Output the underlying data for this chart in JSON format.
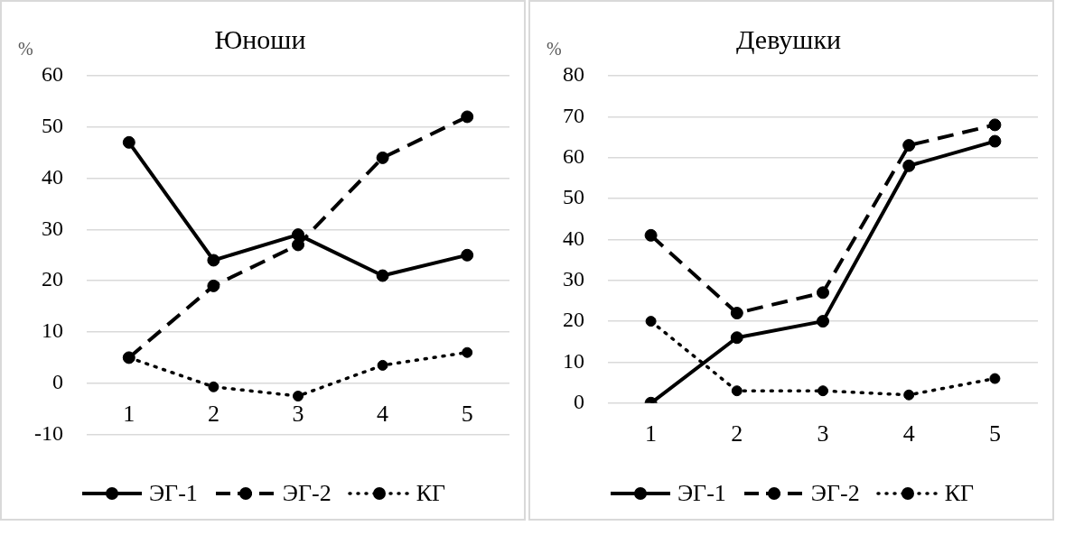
{
  "chart_data": [
    {
      "type": "line",
      "title": "Юноши",
      "ylabel": "%",
      "categories": [
        "1",
        "2",
        "3",
        "4",
        "5"
      ],
      "ylim": [
        -10,
        60
      ],
      "yticks": [
        -10,
        0,
        10,
        20,
        30,
        40,
        50,
        60
      ],
      "grid": "y",
      "legend": "bottom",
      "series": [
        {
          "name": "ЭГ-1",
          "color": "#000000",
          "line_style": "solid",
          "marker": "circle",
          "values": [
            47,
            24,
            29,
            21,
            25
          ]
        },
        {
          "name": "ЭГ-2",
          "color": "#000000",
          "line_style": "dashed",
          "marker": "circle",
          "values": [
            5,
            19,
            27,
            44,
            52
          ]
        },
        {
          "name": "КГ",
          "color": "#000000",
          "line_style": "dotted",
          "marker": "circle",
          "values": [
            5,
            -0.7,
            -2.5,
            3.5,
            6
          ]
        }
      ]
    },
    {
      "type": "line",
      "title": "Девушки",
      "ylabel": "%",
      "categories": [
        "1",
        "2",
        "3",
        "4",
        "5"
      ],
      "ylim": [
        0,
        80
      ],
      "yticks": [
        0,
        10,
        20,
        30,
        40,
        50,
        60,
        70,
        80
      ],
      "grid": "y",
      "legend": "bottom",
      "series": [
        {
          "name": "ЭГ-1",
          "color": "#000000",
          "line_style": "solid",
          "marker": "circle",
          "values": [
            0,
            16,
            20,
            58,
            64
          ]
        },
        {
          "name": "ЭГ-2",
          "color": "#000000",
          "line_style": "dashed",
          "marker": "circle",
          "values": [
            41,
            22,
            27,
            63,
            68
          ]
        },
        {
          "name": "КГ",
          "color": "#000000",
          "line_style": "dotted",
          "marker": "circle",
          "values": [
            20,
            3,
            3,
            2,
            6
          ]
        }
      ]
    }
  ]
}
